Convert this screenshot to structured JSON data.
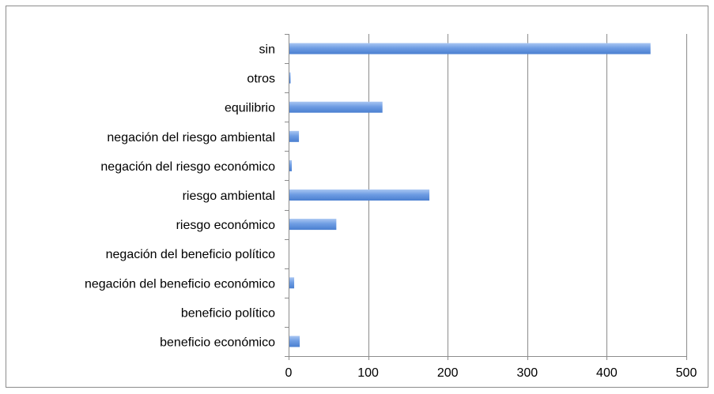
{
  "chart_data": {
    "type": "bar",
    "orientation": "horizontal",
    "title": "",
    "xlabel": "",
    "ylabel": "",
    "categories": [
      "sin",
      "otros",
      "equilibrio",
      "negación del riesgo ambiental",
      "negación del riesgo económico",
      "riesgo ambiental",
      "riesgo económico",
      "negación del beneficio político",
      "negación del beneficio económico",
      "beneficio político",
      "beneficio económico"
    ],
    "values": [
      455,
      2,
      118,
      13,
      4,
      177,
      60,
      0,
      7,
      0,
      14
    ],
    "xlim": [
      0,
      500
    ],
    "xticks": [
      0,
      100,
      200,
      300,
      400,
      500
    ],
    "grid": "vertical",
    "legend": "none",
    "bar_color": "#5b8fdc",
    "bar_highlight": "#a9c6f2",
    "grid_color": "#8c8c8c"
  }
}
